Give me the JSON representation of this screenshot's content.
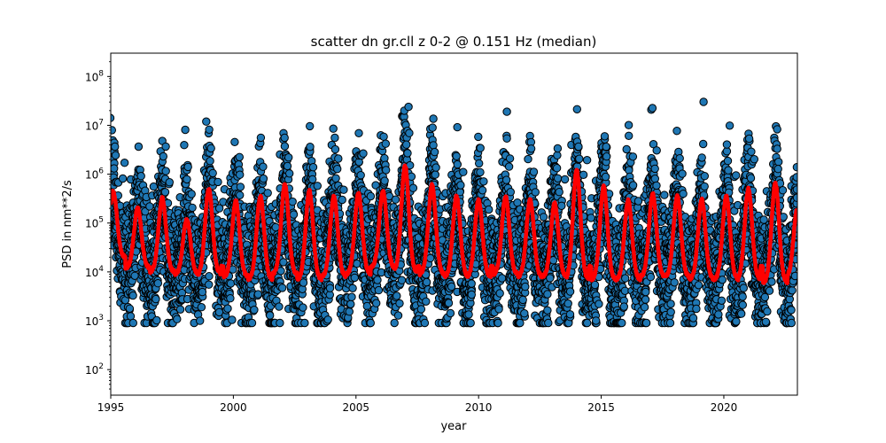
{
  "chart_data": {
    "type": "scatter",
    "title": "scatter dn gr.cll z 0-2 @ 0.151 Hz (median)",
    "xlabel": "year",
    "ylabel": "PSD in nm**2/s",
    "xlim": [
      1995,
      2023
    ],
    "ylim": [
      30,
      300000000
    ],
    "yscale": "log",
    "grid": false,
    "x_ticks": [
      1995,
      2000,
      2005,
      2010,
      2015,
      2020
    ],
    "x_tick_labels": [
      "1995",
      "2000",
      "2005",
      "2010",
      "2015",
      "2020"
    ],
    "y_ticks": [
      100,
      1000,
      10000,
      100000,
      1000000,
      10000000,
      100000000
    ],
    "y_tick_exponents": [
      "2",
      "3",
      "4",
      "5",
      "6",
      "7",
      "8"
    ],
    "y_tick_base": "10",
    "colors": {
      "scatter_fill": "#1f77b4",
      "scatter_edge": "#000000",
      "median_line": "#ff0000"
    },
    "annual_peaks": [
      {
        "year": 1995.1,
        "peak": 450000,
        "trough": 20000
      },
      {
        "year": 1996.1,
        "peak": 200000,
        "trough": 12000
      },
      {
        "year": 1997.1,
        "peak": 320000,
        "trough": 10000
      },
      {
        "year": 1998.1,
        "peak": 120000,
        "trough": 9000
      },
      {
        "year": 1999.0,
        "peak": 500000,
        "trough": 9000
      },
      {
        "year": 2000.1,
        "peak": 280000,
        "trough": 8000
      },
      {
        "year": 2001.1,
        "peak": 350000,
        "trough": 7000
      },
      {
        "year": 2002.1,
        "peak": 600000,
        "trough": 9000
      },
      {
        "year": 2003.1,
        "peak": 450000,
        "trough": 7000
      },
      {
        "year": 2004.1,
        "peak": 350000,
        "trough": 8000
      },
      {
        "year": 2005.1,
        "peak": 400000,
        "trough": 9000
      },
      {
        "year": 2006.1,
        "peak": 450000,
        "trough": 12000
      },
      {
        "year": 2007.0,
        "peak": 1500000,
        "trough": 10000
      },
      {
        "year": 2008.1,
        "peak": 600000,
        "trough": 9000
      },
      {
        "year": 2009.1,
        "peak": 350000,
        "trough": 8000
      },
      {
        "year": 2010.0,
        "peak": 300000,
        "trough": 8000
      },
      {
        "year": 2011.1,
        "peak": 350000,
        "trough": 9000
      },
      {
        "year": 2012.1,
        "peak": 300000,
        "trough": 8000
      },
      {
        "year": 2013.1,
        "peak": 250000,
        "trough": 8000
      },
      {
        "year": 2014.0,
        "peak": 1200000,
        "trough": 7000
      },
      {
        "year": 2015.1,
        "peak": 550000,
        "trough": 7000
      },
      {
        "year": 2016.1,
        "peak": 300000,
        "trough": 7000
      },
      {
        "year": 2017.1,
        "peak": 400000,
        "trough": 8000
      },
      {
        "year": 2018.1,
        "peak": 350000,
        "trough": 8000
      },
      {
        "year": 2019.1,
        "peak": 300000,
        "trough": 7000
      },
      {
        "year": 2020.1,
        "peak": 350000,
        "trough": 7000
      },
      {
        "year": 2021.0,
        "peak": 500000,
        "trough": 7000
      },
      {
        "year": 2022.1,
        "peak": 650000,
        "trough": 6000
      },
      {
        "year": 2023.0,
        "peak": 200000,
        "trough": 8000
      }
    ],
    "series": [
      {
        "name": "",
        "kind": "scatter",
        "y_range": [
          900,
          34000000
        ]
      },
      {
        "name": "",
        "kind": "line",
        "ref": "annual_peaks"
      }
    ]
  }
}
